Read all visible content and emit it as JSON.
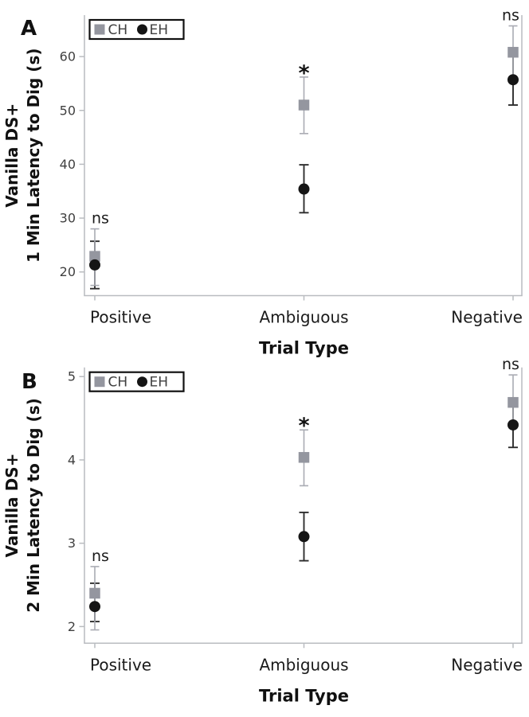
{
  "figure": {
    "background": "#ffffff",
    "axis_color": "#b9bcc0",
    "tick_label_color": "#404040",
    "label_color": "#111111",
    "legend_border_color": "#111111",
    "panel_count": 2
  },
  "chart_data": [
    {
      "type": "scatter",
      "panel_label": "A",
      "xlabel": "Trial Type",
      "ylabel_lines": [
        "Vanilla DS+",
        "1 Min Latency to Dig (s)"
      ],
      "categories": [
        "Positive",
        "Ambiguous",
        "Negative"
      ],
      "ylim": [
        15.6,
        67.7
      ],
      "yticks": [
        20,
        30,
        40,
        50,
        60
      ],
      "grid": false,
      "legend_position": "top-left",
      "legend": [
        {
          "label": "CH",
          "marker": "square",
          "color": "#94969f"
        },
        {
          "label": "EH",
          "marker": "circle",
          "color": "#151515"
        }
      ],
      "series": [
        {
          "name": "CH",
          "marker": "square",
          "color": "#94969f",
          "error_color": "#a9abb3",
          "values": [
            22.9,
            51.0,
            60.8
          ],
          "err_low": [
            17.5,
            45.7,
            55.9
          ],
          "err_high": [
            28.0,
            56.2,
            65.7
          ]
        },
        {
          "name": "EH",
          "marker": "circle",
          "color": "#151515",
          "error_color": "#2e2e2e",
          "values": [
            21.3,
            35.4,
            55.7
          ],
          "err_low": [
            16.9,
            31.0,
            51.0
          ],
          "err_high": [
            25.7,
            39.9,
            60.3
          ]
        }
      ],
      "significance": [
        "ns",
        "*",
        "ns"
      ]
    },
    {
      "type": "scatter",
      "panel_label": "B",
      "xlabel": "Trial Type",
      "ylabel_lines": [
        "Vanilla DS+",
        "2 Min Latency to Dig (s)"
      ],
      "categories": [
        "Positive",
        "Ambiguous",
        "Negative"
      ],
      "ylim": [
        1.8,
        5.11
      ],
      "yticks": [
        2,
        3,
        4,
        5
      ],
      "grid": false,
      "legend_position": "top-left",
      "legend": [
        {
          "label": "CH",
          "marker": "square",
          "color": "#94969f"
        },
        {
          "label": "EH",
          "marker": "circle",
          "color": "#151515"
        }
      ],
      "series": [
        {
          "name": "CH",
          "marker": "square",
          "color": "#94969f",
          "error_color": "#a9abb3",
          "values": [
            2.4,
            4.03,
            4.69
          ],
          "err_low": [
            1.96,
            3.69,
            4.44
          ],
          "err_high": [
            2.72,
            4.36,
            5.02
          ]
        },
        {
          "name": "EH",
          "marker": "circle",
          "color": "#151515",
          "error_color": "#2e2e2e",
          "values": [
            2.24,
            3.08,
            4.42
          ],
          "err_low": [
            2.06,
            2.79,
            4.15
          ],
          "err_high": [
            2.52,
            3.37,
            4.68
          ]
        }
      ],
      "significance": [
        "ns",
        "*",
        "ns"
      ]
    }
  ]
}
